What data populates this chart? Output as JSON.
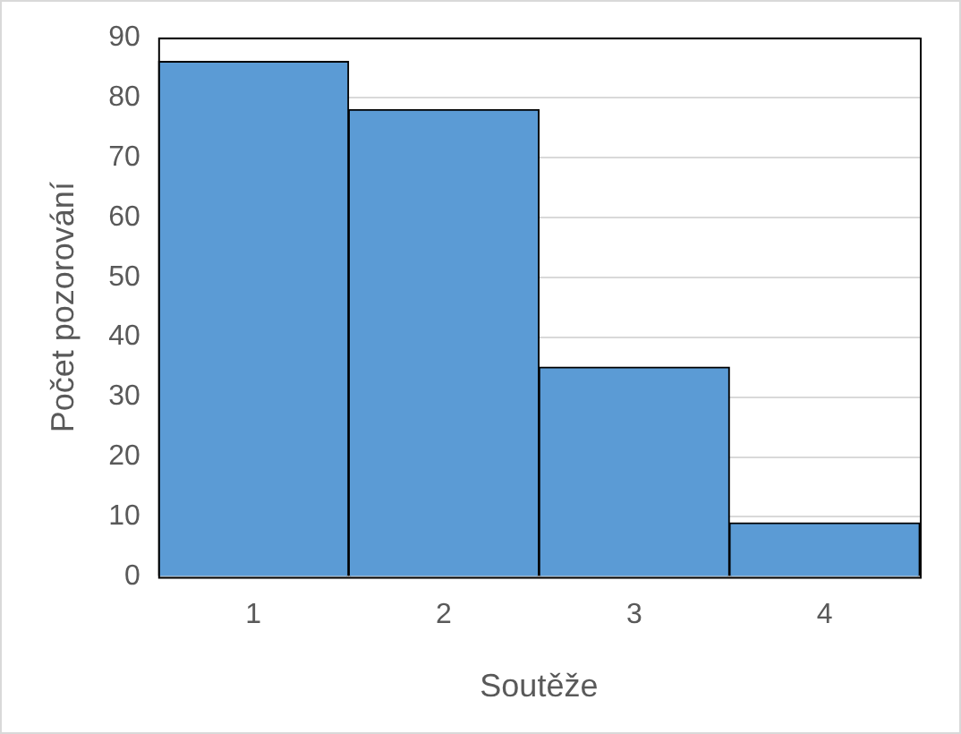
{
  "chart_data": {
    "type": "bar",
    "xlabel": "Soutěže",
    "ylabel": "Počet pozorování",
    "categories": [
      "1",
      "2",
      "3",
      "4"
    ],
    "values": [
      86,
      78,
      35,
      9
    ],
    "color": "#5b9bd5",
    "ylim": [
      0,
      90
    ],
    "yticks": [
      0,
      10,
      20,
      30,
      40,
      50,
      60,
      70,
      80,
      90
    ],
    "grid": "y"
  }
}
